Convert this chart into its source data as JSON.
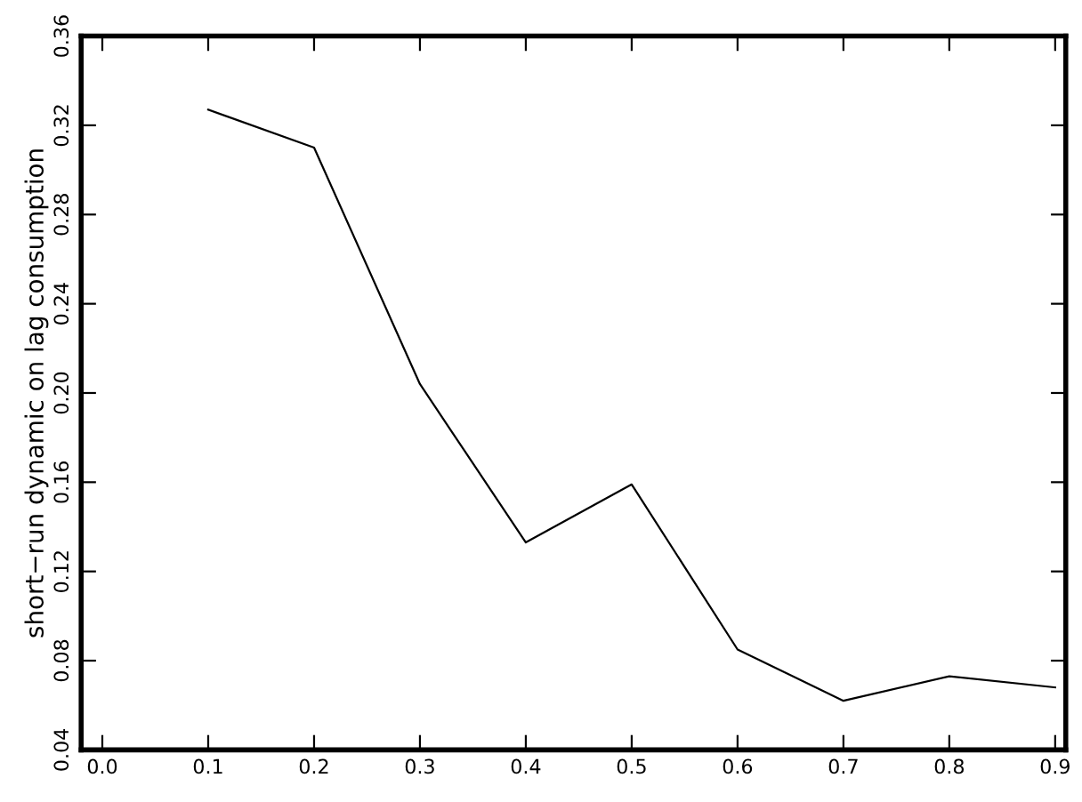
{
  "chart_data": {
    "type": "line",
    "ylabel": "short−run dynamic on lag consumption",
    "x": [
      0.1,
      0.2,
      0.3,
      0.4,
      0.5,
      0.6,
      0.7,
      0.8,
      0.9
    ],
    "series": [
      {
        "color": "#000000",
        "values": [
          0.327,
          0.31,
          0.204,
          0.133,
          0.159,
          0.085,
          0.062,
          0.073,
          0.068
        ]
      }
    ],
    "xlim": [
      -0.02,
      0.91
    ],
    "xticks": [
      {
        "value": 0,
        "label": "0.0"
      },
      0.1,
      0.2,
      0.3,
      0.4,
      0.5,
      0.6,
      0.7,
      0.8,
      0.9
    ],
    "ylim": [
      0.04,
      0.36
    ],
    "yticks": [
      0.04,
      0.08,
      0.12,
      0.16,
      {
        "value": 0.2,
        "label": "0.20"
      },
      0.24,
      0.28,
      0.32,
      0.36
    ],
    "grid": false,
    "legend": false,
    "marker": "none",
    "line_style": "solid"
  }
}
